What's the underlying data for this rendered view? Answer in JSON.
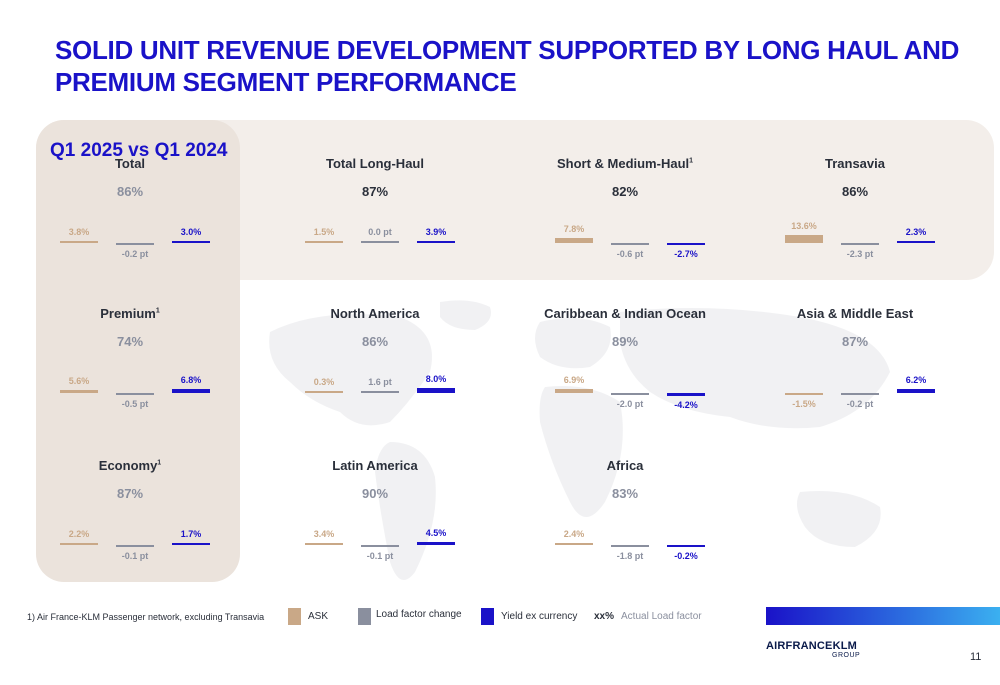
{
  "title": {
    "line1": "SOLID UNIT REVENUE DEVELOPMENT SUPPORTED BY LONG HAUL AND",
    "line2": "PREMIUM SEGMENT PERFORMANCE"
  },
  "period_label": "Q1 2025 vs Q1 2024",
  "colors": {
    "ask": "#c9a887",
    "load_factor": "#8a8f9e",
    "yield": "#1a12c8",
    "title": "#1a12c8",
    "lf_text": "#8a8f9e",
    "band": "#f3eeea"
  },
  "chart_data": [
    {
      "type": "bar",
      "title": "Total",
      "title_sup": "",
      "load_factor": "86%",
      "categories": [
        "ASK",
        "Load factor change",
        "Yield ex currency"
      ],
      "values": [
        3.8,
        -0.2,
        3.0
      ],
      "labels": [
        "3.8%",
        "-0.2 pt",
        "3.0%"
      ]
    },
    {
      "type": "bar",
      "title": "Total Long-Haul",
      "title_sup": "",
      "load_factor": "87%",
      "categories": [
        "ASK",
        "Load factor change",
        "Yield ex currency"
      ],
      "values": [
        1.5,
        0.0,
        3.9
      ],
      "labels": [
        "1.5%",
        "0.0 pt",
        "3.9%"
      ]
    },
    {
      "type": "bar",
      "title": "Short & Medium-Haul",
      "title_sup": "1",
      "load_factor": "82%",
      "categories": [
        "ASK",
        "Load factor change",
        "Yield ex currency"
      ],
      "values": [
        7.8,
        -0.6,
        -2.7
      ],
      "labels": [
        "7.8%",
        "-0.6 pt",
        "-2.7%"
      ]
    },
    {
      "type": "bar",
      "title": "Transavia",
      "title_sup": "",
      "load_factor": "86%",
      "categories": [
        "ASK",
        "Load factor change",
        "Yield ex currency"
      ],
      "values": [
        13.6,
        -2.3,
        2.3
      ],
      "labels": [
        "13.6%",
        "-2.3 pt",
        "2.3%"
      ]
    },
    {
      "type": "bar",
      "title": "Premium",
      "title_sup": "1",
      "load_factor": "74%",
      "categories": [
        "ASK",
        "Load factor change",
        "Yield ex currency"
      ],
      "values": [
        5.6,
        -0.5,
        6.8
      ],
      "labels": [
        "5.6%",
        "-0.5 pt",
        "6.8%"
      ]
    },
    {
      "type": "bar",
      "title": "North America",
      "title_sup": "",
      "load_factor": "86%",
      "categories": [
        "ASK",
        "Load factor change",
        "Yield ex currency"
      ],
      "values": [
        0.3,
        1.6,
        8.0
      ],
      "labels": [
        "0.3%",
        "1.6 pt",
        "8.0%"
      ]
    },
    {
      "type": "bar",
      "title": "Caribbean & Indian Ocean",
      "title_sup": "",
      "load_factor": "89%",
      "categories": [
        "ASK",
        "Load factor change",
        "Yield ex currency"
      ],
      "values": [
        6.9,
        -2.0,
        -4.2
      ],
      "labels": [
        "6.9%",
        "-2.0 pt",
        "-4.2%"
      ]
    },
    {
      "type": "bar",
      "title": "Asia & Middle East",
      "title_sup": "",
      "load_factor": "87%",
      "categories": [
        "ASK",
        "Load factor change",
        "Yield ex currency"
      ],
      "values": [
        -1.5,
        -0.2,
        6.2
      ],
      "labels": [
        "-1.5%",
        "-0.2 pt",
        "6.2%"
      ]
    },
    {
      "type": "bar",
      "title": "Economy",
      "title_sup": "1",
      "load_factor": "87%",
      "categories": [
        "ASK",
        "Load factor change",
        "Yield ex currency"
      ],
      "values": [
        2.2,
        -0.1,
        1.7
      ],
      "labels": [
        "2.2%",
        "-0.1 pt",
        "1.7%"
      ]
    },
    {
      "type": "bar",
      "title": "Latin America",
      "title_sup": "",
      "load_factor": "90%",
      "categories": [
        "ASK",
        "Load factor change",
        "Yield ex currency"
      ],
      "values": [
        3.4,
        -0.1,
        4.5
      ],
      "labels": [
        "3.4%",
        "-0.1 pt",
        "4.5%"
      ]
    },
    {
      "type": "bar",
      "title": "Africa",
      "title_sup": "",
      "load_factor": "83%",
      "categories": [
        "ASK",
        "Load factor change",
        "Yield ex currency"
      ],
      "values": [
        2.4,
        -1.8,
        -0.2
      ],
      "labels": [
        "2.4%",
        "-1.8 pt",
        "-0.2%"
      ]
    }
  ],
  "footnote": "1) Air France-KLM Passenger network, excluding Transavia",
  "legend": {
    "ask": "ASK",
    "load_factor": "Load factor change",
    "yield": "Yield ex currency",
    "actual_symbol": "xx%",
    "actual_label": "Actual Load factor"
  },
  "logo": {
    "text": "AIRFRANCEKLM",
    "group": "GROUP"
  },
  "page_number": "11"
}
